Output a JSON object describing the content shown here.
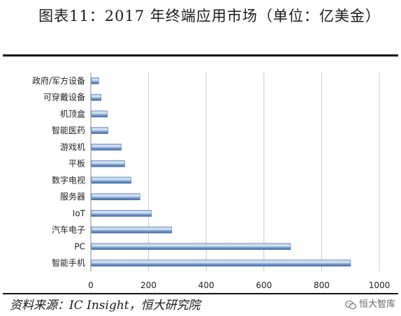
{
  "title": "图表11：2017 年终端应用市场（单位：亿美金）",
  "source": "资料来源：IC Insight，恒大研究院",
  "watermark": "恒大智库",
  "chart_data": {
    "type": "bar",
    "orientation": "horizontal",
    "categories": [
      "政府/军方设备",
      "可穿戴设备",
      "机顶盒",
      "智能医药",
      "游戏机",
      "平板",
      "数字电视",
      "服务器",
      "IoT",
      "汽车电子",
      "PC",
      "智能手机"
    ],
    "values": [
      25,
      33,
      55,
      57,
      103,
      115,
      137,
      168,
      208,
      278,
      690,
      898
    ],
    "xlim": [
      0,
      1000
    ],
    "xticks": [
      0,
      200,
      400,
      600,
      800,
      1000
    ],
    "grid": true,
    "bar_color": "#5b83b8"
  }
}
